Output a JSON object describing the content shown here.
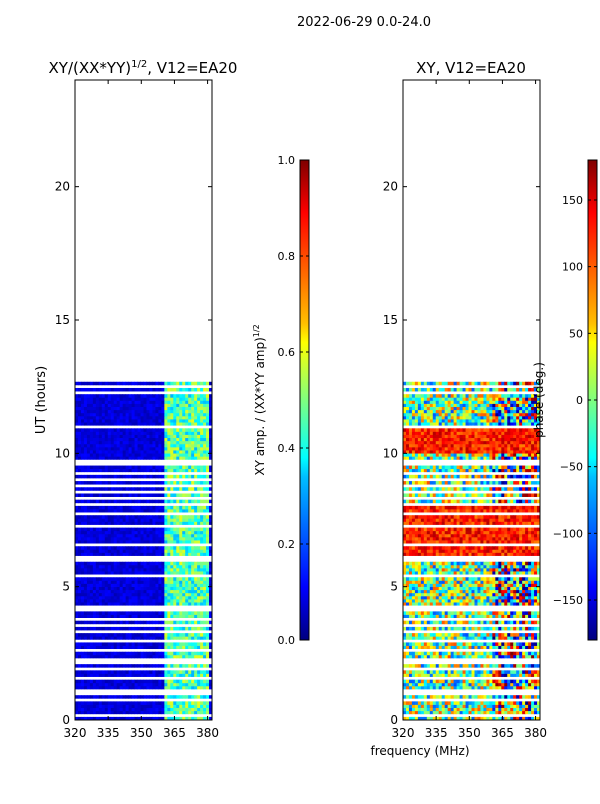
{
  "suptitle": "2022-06-29 0.0-24.0",
  "colors": {
    "jet": [
      "#00007f",
      "#0000ff",
      "#007fff",
      "#00ffff",
      "#7fff7f",
      "#ffff00",
      "#ff7f00",
      "#ff0000",
      "#7f0000"
    ]
  },
  "chart_data": [
    {
      "type": "heatmap",
      "title_prefix": "XY/(XX*YY)",
      "title_exp": "1/2",
      "title_suffix": ", V12=EA20",
      "xlabel": "",
      "ylabel": "UT (hours)",
      "xlim": [
        320,
        382
      ],
      "ylim": [
        0,
        24
      ],
      "xticks": [
        "320",
        "335",
        "350",
        "365",
        "380"
      ],
      "xtick_values": [
        320,
        335,
        350,
        365,
        380
      ],
      "yticks": [
        "0",
        "5",
        "10",
        "15",
        "20"
      ],
      "ytick_values": [
        0,
        5,
        10,
        15,
        20
      ],
      "data_extent_hours": [
        0,
        12.8
      ],
      "colorbar": {
        "label_main": "XY amp. / (XX*YY amp)",
        "label_exp": "1/2",
        "range": [
          0,
          1
        ],
        "ticks": [
          "0.0",
          "0.2",
          "0.4",
          "0.6",
          "0.8",
          "1.0"
        ],
        "tick_values": [
          0,
          0.2,
          0.4,
          0.6,
          0.8,
          1.0
        ]
      }
    },
    {
      "type": "heatmap",
      "title": "XY, V12=EA20",
      "xlabel": "frequency (MHz)",
      "ylabel": "",
      "xlim": [
        320,
        382
      ],
      "ylim": [
        0,
        24
      ],
      "xticks": [
        "320",
        "335",
        "350",
        "365",
        "380"
      ],
      "xtick_values": [
        320,
        335,
        350,
        365,
        380
      ],
      "yticks": [
        "0",
        "5",
        "10",
        "15",
        "20"
      ],
      "ytick_values": [
        0,
        5,
        10,
        15,
        20
      ],
      "data_extent_hours": [
        0,
        12.8
      ],
      "colorbar": {
        "label": "phase (deg.)",
        "range": [
          -180,
          180
        ],
        "ticks": [
          "−150",
          "−100",
          "−50",
          "0",
          "50",
          "100",
          "150"
        ],
        "tick_values": [
          -150,
          -100,
          -50,
          0,
          50,
          100,
          150
        ]
      }
    }
  ]
}
